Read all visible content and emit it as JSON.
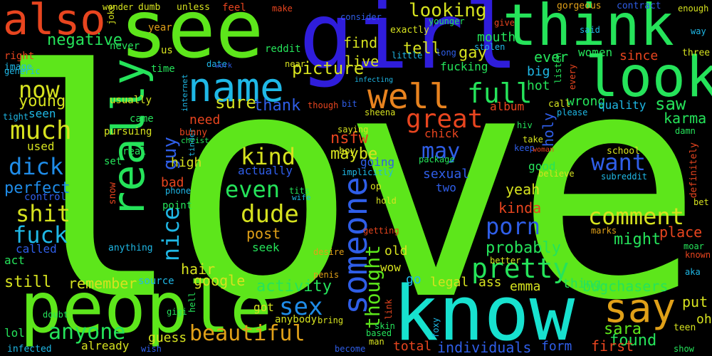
{
  "words": [
    {
      "text": "love",
      "color": "#5de61b"
    },
    {
      "text": "see",
      "color": "#5de61b"
    },
    {
      "text": "girl",
      "color": "#2f1ddb"
    },
    {
      "text": "think",
      "color": "#25e35a"
    },
    {
      "text": "look",
      "color": "#25e35a"
    },
    {
      "text": "know",
      "color": "#17e1cf"
    },
    {
      "text": "people",
      "color": "#5de61b"
    },
    {
      "text": "also",
      "color": "#e8451f"
    },
    {
      "text": "really",
      "color": "#25e35a"
    },
    {
      "text": "name",
      "color": "#1fb8e6"
    },
    {
      "text": "well",
      "color": "#e8831f"
    },
    {
      "text": "someone",
      "color": "#2f5ee8"
    },
    {
      "text": "say",
      "color": "#e0a018"
    },
    {
      "text": "pretty",
      "color": "#25e35a"
    },
    {
      "text": "full",
      "color": "#25e35a"
    },
    {
      "text": "great",
      "color": "#e8451f"
    },
    {
      "text": "comment",
      "color": "#d6e21f"
    },
    {
      "text": "porn",
      "color": "#2f5ee8"
    },
    {
      "text": "want",
      "color": "#2f5ee8"
    },
    {
      "text": "may",
      "color": "#2f5ee8"
    },
    {
      "text": "now",
      "color": "#d6e21f"
    },
    {
      "text": "much",
      "color": "#d6e21f"
    },
    {
      "text": "dick",
      "color": "#1f8ce8"
    },
    {
      "text": "shit",
      "color": "#d6e21f"
    },
    {
      "text": "fuck",
      "color": "#1fb8e6"
    },
    {
      "text": "nice",
      "color": "#1fb8e6"
    },
    {
      "text": "guy",
      "color": "#2f5ee8"
    },
    {
      "text": "dude",
      "color": "#d6e21f"
    },
    {
      "text": "even",
      "color": "#25e35a"
    },
    {
      "text": "kind",
      "color": "#d6e21f"
    },
    {
      "text": "beautiful",
      "color": "#e0a018"
    },
    {
      "text": "anyone",
      "color": "#25e35a"
    },
    {
      "text": "sex",
      "color": "#1f8ce8"
    },
    {
      "text": "thought",
      "color": "#5de61b"
    },
    {
      "text": "looking",
      "color": "#d6e21f"
    },
    {
      "text": "picture",
      "color": "#d6e21f"
    },
    {
      "text": "negative",
      "color": "#25e35a"
    },
    {
      "text": "young",
      "color": "#d6e21f"
    },
    {
      "text": "perfect",
      "color": "#1f8ce8"
    },
    {
      "text": "activity",
      "color": "#25e35a"
    },
    {
      "text": "remember",
      "color": "#d6e21f"
    },
    {
      "text": "still",
      "color": "#d6e21f"
    },
    {
      "text": "probably",
      "color": "#25e35a"
    },
    {
      "text": "might",
      "color": "#25e35a"
    },
    {
      "text": "nsfw",
      "color": "#e8451f"
    },
    {
      "text": "maybe",
      "color": "#d6e21f"
    },
    {
      "text": "sure",
      "color": "#d6e21f"
    },
    {
      "text": "thank",
      "color": "#2f5ee8"
    },
    {
      "text": "hair",
      "color": "#d6e21f"
    },
    {
      "text": "google",
      "color": "#d6e21f"
    },
    {
      "text": "individuals",
      "color": "#2f5ee8"
    },
    {
      "text": "found",
      "color": "#25e35a"
    },
    {
      "text": "sara",
      "color": "#5de61b"
    },
    {
      "text": "bugchasers",
      "color": "#25e35a"
    },
    {
      "text": "first",
      "color": "#e8451f"
    },
    {
      "text": "put",
      "color": "#d6e21f"
    },
    {
      "text": "yeah",
      "color": "#d6e21f"
    },
    {
      "text": "kinda",
      "color": "#e8451f"
    },
    {
      "text": "place",
      "color": "#e8451f"
    },
    {
      "text": "saw",
      "color": "#25e35a"
    },
    {
      "text": "karma",
      "color": "#25e35a"
    },
    {
      "text": "holy",
      "color": "#2f5ee8"
    },
    {
      "text": "ever",
      "color": "#25e35a"
    },
    {
      "text": "gay",
      "color": "#d6e21f"
    },
    {
      "text": "women",
      "color": "#25e35a"
    },
    {
      "text": "since",
      "color": "#e8451f"
    },
    {
      "text": "tell",
      "color": "#d6e21f"
    },
    {
      "text": "find",
      "color": "#d6e21f"
    },
    {
      "text": "live",
      "color": "#d6e21f"
    },
    {
      "text": "mouth",
      "color": "#25e35a"
    },
    {
      "text": "fucking",
      "color": "#25e35a"
    },
    {
      "text": "hot",
      "color": "#25e35a"
    },
    {
      "text": "big",
      "color": "#1fb8e6"
    },
    {
      "text": "wrong",
      "color": "#25e35a"
    },
    {
      "text": "quality",
      "color": "#1fb8e6"
    },
    {
      "text": "album",
      "color": "#e8451f"
    },
    {
      "text": "chick",
      "color": "#e8451f"
    },
    {
      "text": "legal",
      "color": "#d6e21f"
    },
    {
      "text": "ass",
      "color": "#d6e21f"
    },
    {
      "text": "emma",
      "color": "#d6e21f"
    },
    {
      "text": "thing",
      "color": "#25e35a"
    },
    {
      "text": "form",
      "color": "#2f5ee8"
    },
    {
      "text": "total",
      "color": "#e8451f"
    },
    {
      "text": "need",
      "color": "#e8451f"
    },
    {
      "text": "high",
      "color": "#d6e21f"
    },
    {
      "text": "bad",
      "color": "#e8451f"
    },
    {
      "text": "post",
      "color": "#e0a018"
    },
    {
      "text": "seek",
      "color": "#25e35a"
    },
    {
      "text": "got",
      "color": "#d6e21f"
    },
    {
      "text": "old",
      "color": "#d6e21f"
    },
    {
      "text": "wow",
      "color": "#d6e21f"
    },
    {
      "text": "go",
      "color": "#1fb8e6"
    },
    {
      "text": "going",
      "color": "#2f5ee8"
    },
    {
      "text": "sexual",
      "color": "#2f5ee8"
    },
    {
      "text": "two",
      "color": "#2f5ee8"
    },
    {
      "text": "actually",
      "color": "#2f5ee8"
    },
    {
      "text": "good",
      "color": "#25e35a"
    },
    {
      "text": "guess",
      "color": "#d6e21f"
    },
    {
      "text": "already",
      "color": "#d6e21f"
    },
    {
      "text": "used",
      "color": "#d6e21f"
    },
    {
      "text": "seen",
      "color": "#1fb8e6"
    },
    {
      "text": "called",
      "color": "#2f5ee8"
    },
    {
      "text": "control",
      "color": "#2f5ee8"
    },
    {
      "text": "act",
      "color": "#25e35a"
    },
    {
      "text": "lol",
      "color": "#25e35a"
    },
    {
      "text": "infected",
      "color": "#1fb8e6"
    },
    {
      "text": "pursuing",
      "color": "#d6e21f"
    },
    {
      "text": "came",
      "color": "#25e35a"
    },
    {
      "text": "real",
      "color": "#25e35a"
    },
    {
      "text": "set",
      "color": "#25e35a"
    },
    {
      "text": "usually",
      "color": "#d6e21f"
    },
    {
      "text": "point",
      "color": "#25e35a"
    },
    {
      "text": "source",
      "color": "#1fb8e6"
    },
    {
      "text": "anything",
      "color": "#1fb8e6"
    },
    {
      "text": "anybody",
      "color": "#d6e21f"
    },
    {
      "text": "right",
      "color": "#e8451f"
    },
    {
      "text": "image",
      "color": "#1fb8e6"
    },
    {
      "text": "generic",
      "color": "#1fb8e6"
    },
    {
      "text": "tight",
      "color": "#1fb8e6"
    },
    {
      "text": "doubt",
      "color": "#25e35a"
    },
    {
      "text": "never",
      "color": "#25e35a"
    },
    {
      "text": "year",
      "color": "#e0a018"
    },
    {
      "text": "us",
      "color": "#d6e21f"
    },
    {
      "text": "time",
      "color": "#25e35a"
    },
    {
      "text": "dumb",
      "color": "#d6e21f"
    },
    {
      "text": "wonder",
      "color": "#d6e21f"
    },
    {
      "text": "feel",
      "color": "#e8451f"
    },
    {
      "text": "date",
      "color": "#1fb8e6"
    },
    {
      "text": "reddit",
      "color": "#25e35a"
    },
    {
      "text": "unless",
      "color": "#d6e21f"
    },
    {
      "text": "make",
      "color": "#e8451f"
    },
    {
      "text": "near",
      "color": "#d6e21f"
    },
    {
      "text": "exactly",
      "color": "#d6e21f"
    },
    {
      "text": "little",
      "color": "#1fb8e6"
    },
    {
      "text": "consider",
      "color": "#2f5ee8"
    },
    {
      "text": "younger",
      "color": "#25e35a"
    },
    {
      "text": "give",
      "color": "#e8451f"
    },
    {
      "text": "stolen",
      "color": "#1fb8e6"
    },
    {
      "text": "contract",
      "color": "#2f5ee8"
    },
    {
      "text": "gorgeous",
      "color": "#e0a018"
    },
    {
      "text": "enough",
      "color": "#d6e21f"
    },
    {
      "text": "said",
      "color": "#1fb8e6"
    },
    {
      "text": "way",
      "color": "#1fb8e6"
    },
    {
      "text": "three",
      "color": "#d6e21f"
    },
    {
      "text": "long",
      "color": "#2f5ee8"
    },
    {
      "text": "listen",
      "color": "#25e35a"
    },
    {
      "text": "every",
      "color": "#e8451f"
    },
    {
      "text": "call",
      "color": "#d6e21f"
    },
    {
      "text": "please",
      "color": "#1fb8e6"
    },
    {
      "text": "damn",
      "color": "#25e35a"
    },
    {
      "text": "hiv",
      "color": "#25e35a"
    },
    {
      "text": "take",
      "color": "#d6e21f"
    },
    {
      "text": "keep",
      "color": "#2f5ee8"
    },
    {
      "text": "woman",
      "color": "#e8451f"
    },
    {
      "text": "believe",
      "color": "#d6e21f"
    },
    {
      "text": "school",
      "color": "#d6e21f"
    },
    {
      "text": "subreddit",
      "color": "#1fb8e6"
    },
    {
      "text": "definitely",
      "color": "#e8451f"
    },
    {
      "text": "bet",
      "color": "#d6e21f"
    },
    {
      "text": "marks",
      "color": "#e0a018"
    },
    {
      "text": "moar",
      "color": "#25e35a"
    },
    {
      "text": "known",
      "color": "#e8451f"
    },
    {
      "text": "aka",
      "color": "#1fb8e6"
    },
    {
      "text": "oh",
      "color": "#d6e21f"
    },
    {
      "text": "teen",
      "color": "#d6e21f"
    },
    {
      "text": "show",
      "color": "#25e35a"
    },
    {
      "text": "better",
      "color": "#d6e21f"
    },
    {
      "text": "penis",
      "color": "#e0a018"
    },
    {
      "text": "desire",
      "color": "#e0a018"
    },
    {
      "text": "getting",
      "color": "#e8451f"
    },
    {
      "text": "hold",
      "color": "#d6e21f"
    },
    {
      "text": "op",
      "color": "#d6e21f"
    },
    {
      "text": "link",
      "color": "#e8451f"
    },
    {
      "text": "skin",
      "color": "#25e35a"
    },
    {
      "text": "based",
      "color": "#25e35a"
    },
    {
      "text": "man",
      "color": "#d6e21f"
    },
    {
      "text": "become",
      "color": "#2f5ee8"
    },
    {
      "text": "bring",
      "color": "#d6e21f"
    },
    {
      "text": "foxy",
      "color": "#1fb8e6"
    },
    {
      "text": "wish",
      "color": "#2f5ee8"
    },
    {
      "text": "gigi",
      "color": "#25e35a"
    },
    {
      "text": "hell",
      "color": "#25e35a"
    },
    {
      "text": "phone",
      "color": "#1fb8e6"
    },
    {
      "text": "snow",
      "color": "#e8451f"
    },
    {
      "text": "tits",
      "color": "#25e35a"
    },
    {
      "text": "wife",
      "color": "#1fb8e6"
    },
    {
      "text": "package",
      "color": "#25e35a"
    },
    {
      "text": "implicitly",
      "color": "#1fb8e6"
    },
    {
      "text": "boy",
      "color": "#d6e21f"
    },
    {
      "text": "saying",
      "color": "#d6e21f"
    },
    {
      "text": "though",
      "color": "#e8451f"
    },
    {
      "text": "bit",
      "color": "#2f5ee8"
    },
    {
      "text": "sheena",
      "color": "#d6e21f"
    },
    {
      "text": "infecting",
      "color": "#1fb8e6"
    },
    {
      "text": "work",
      "color": "#2f5ee8"
    },
    {
      "text": "internet",
      "color": "#1fb8e6"
    },
    {
      "text": "tinder",
      "color": "#1fb8e6"
    },
    {
      "text": "christ",
      "color": "#25e35a"
    },
    {
      "text": "bunny",
      "color": "#e8451f"
    },
    {
      "text": "joke",
      "color": "#d6e21f"
    }
  ]
}
